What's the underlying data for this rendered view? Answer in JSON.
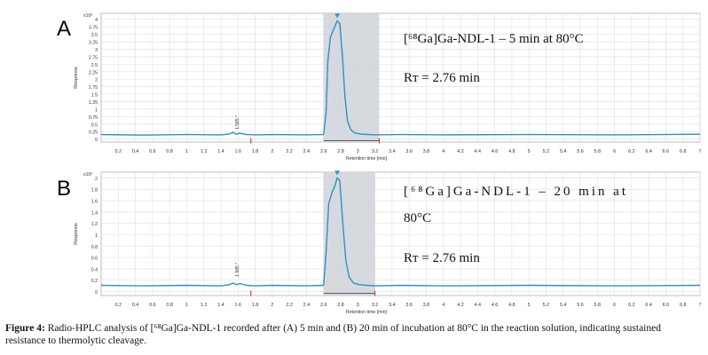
{
  "figure": {
    "caption_label": "Figure 4:",
    "caption_text": "Radio-HPLC analysis of [⁶⁸Ga]Ga-NDL-1 recorded after (A) 5 min and (B) 20 min of incubation at 80°C in the reaction solution, indicating sustained resistance to thermolytic cleavage."
  },
  "colors": {
    "trace": "#2f8fc8",
    "band": "#cfd3d8",
    "grid": "#e3e3e3",
    "axis": "#555555",
    "marker": "#d23b3b"
  },
  "chart_data": [
    {
      "type": "line",
      "panel_label": "A",
      "title_lines": [
        "[⁶⁸Ga]Ga-NDL-1 – 5 min at 80°C"
      ],
      "rt_label": "Rᴛ = 2.76 min",
      "exponent": "x10⁶",
      "ylabel": "Response",
      "xlabel": "Retention time [min]",
      "xlim": [
        0,
        7
      ],
      "ylim": [
        -0.1,
        4.2
      ],
      "x_ticks": [
        0.2,
        0.4,
        0.6,
        0.8,
        1,
        1.2,
        1.4,
        1.6,
        1.8,
        2,
        2.2,
        2.4,
        2.6,
        2.8,
        3,
        3.2,
        3.4,
        3.6,
        3.8,
        4,
        4.2,
        4.4,
        4.6,
        4.8,
        5,
        5.2,
        5.4,
        5.6,
        5.8,
        6,
        6.2,
        6.4,
        6.6,
        6.8,
        7
      ],
      "y_ticks": [
        0,
        0.25,
        0.5,
        0.75,
        1,
        1.25,
        1.5,
        1.75,
        2,
        2.25,
        2.5,
        2.75,
        3,
        3.25,
        3.5,
        3.75,
        4
      ],
      "band": [
        2.6,
        3.25
      ],
      "peak_label": "1.585 *",
      "series": [
        {
          "x": [
            0,
            0.5,
            1.0,
            1.4,
            1.5,
            1.54,
            1.58,
            1.62,
            1.7,
            1.8,
            2.0,
            2.4,
            2.6,
            2.63,
            2.65,
            2.68,
            2.7,
            2.73,
            2.76,
            2.79,
            2.82,
            2.85,
            2.88,
            2.92,
            2.97,
            3.05,
            3.2,
            3.5,
            4.0,
            5.0,
            6.0,
            7.0
          ],
          "y": [
            0.15,
            0.13,
            0.15,
            0.14,
            0.17,
            0.22,
            0.16,
            0.19,
            0.15,
            0.14,
            0.15,
            0.14,
            0.15,
            0.9,
            2.6,
            3.4,
            3.55,
            3.75,
            3.95,
            3.85,
            2.8,
            1.4,
            0.6,
            0.3,
            0.2,
            0.16,
            0.14,
            0.15,
            0.14,
            0.15,
            0.14,
            0.16
          ]
        }
      ]
    },
    {
      "type": "line",
      "panel_label": "B",
      "title_lines": [
        "[⁶⁸Ga]Ga-NDL-1   –   20   min   at",
        "80°C"
      ],
      "rt_label": "Rᴛ = 2.76 min",
      "exponent": "x10⁶",
      "ylabel": "Response",
      "xlabel": "Retention time [min]",
      "xlim": [
        0,
        7
      ],
      "ylim": [
        -0.07,
        2.1
      ],
      "x_ticks": [
        0.2,
        0.4,
        0.6,
        0.8,
        1,
        1.2,
        1.4,
        1.6,
        1.8,
        2,
        2.2,
        2.4,
        2.6,
        2.8,
        3,
        3.2,
        3.4,
        3.6,
        3.8,
        4,
        4.2,
        4.4,
        4.6,
        4.8,
        5,
        5.2,
        5.4,
        5.6,
        5.8,
        6,
        6.2,
        6.4,
        6.6,
        6.8,
        7
      ],
      "y_ticks": [
        0,
        0.2,
        0.4,
        0.6,
        0.8,
        1,
        1.2,
        1.4,
        1.6,
        1.8,
        2
      ],
      "band": [
        2.6,
        3.2
      ],
      "peak_label": "1.585 *",
      "series": [
        {
          "x": [
            0,
            0.5,
            1.0,
            1.4,
            1.5,
            1.54,
            1.58,
            1.62,
            1.7,
            1.8,
            2.0,
            2.4,
            2.6,
            2.63,
            2.66,
            2.7,
            2.73,
            2.76,
            2.79,
            2.82,
            2.86,
            2.9,
            2.95,
            3.02,
            3.1,
            3.2,
            3.5,
            4.0,
            5.0,
            6.0,
            7.0
          ],
          "y": [
            0.11,
            0.1,
            0.11,
            0.1,
            0.12,
            0.15,
            0.12,
            0.14,
            0.11,
            0.1,
            0.11,
            0.1,
            0.11,
            0.7,
            1.55,
            1.75,
            1.85,
            2.0,
            1.95,
            1.3,
            0.55,
            0.25,
            0.15,
            0.12,
            0.11,
            0.1,
            0.11,
            0.1,
            0.11,
            0.1,
            0.11
          ]
        }
      ]
    }
  ]
}
